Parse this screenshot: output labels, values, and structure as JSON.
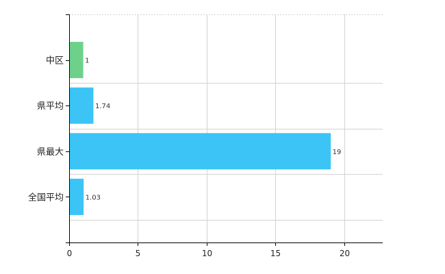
{
  "chart_data": {
    "type": "bar",
    "orientation": "horizontal",
    "categories": [
      "中区",
      "県平均",
      "県最大",
      "全国平均"
    ],
    "values": [
      1,
      1.74,
      19,
      1.03
    ],
    "data_labels": [
      "1",
      "1.74",
      "19",
      "1.03"
    ],
    "bar_colors": [
      "#6dd18c",
      "#3cc4f6",
      "#3cc4f6",
      "#3cc4f6"
    ],
    "xlim": [
      0,
      22.8
    ],
    "xticks": [
      0,
      5,
      10,
      15,
      20
    ],
    "xtick_labels": [
      "0",
      "5",
      "10",
      "15",
      "20"
    ],
    "grid": true,
    "grid_color": "#d3d3d3",
    "title": "",
    "xlabel": "",
    "ylabel": ""
  }
}
